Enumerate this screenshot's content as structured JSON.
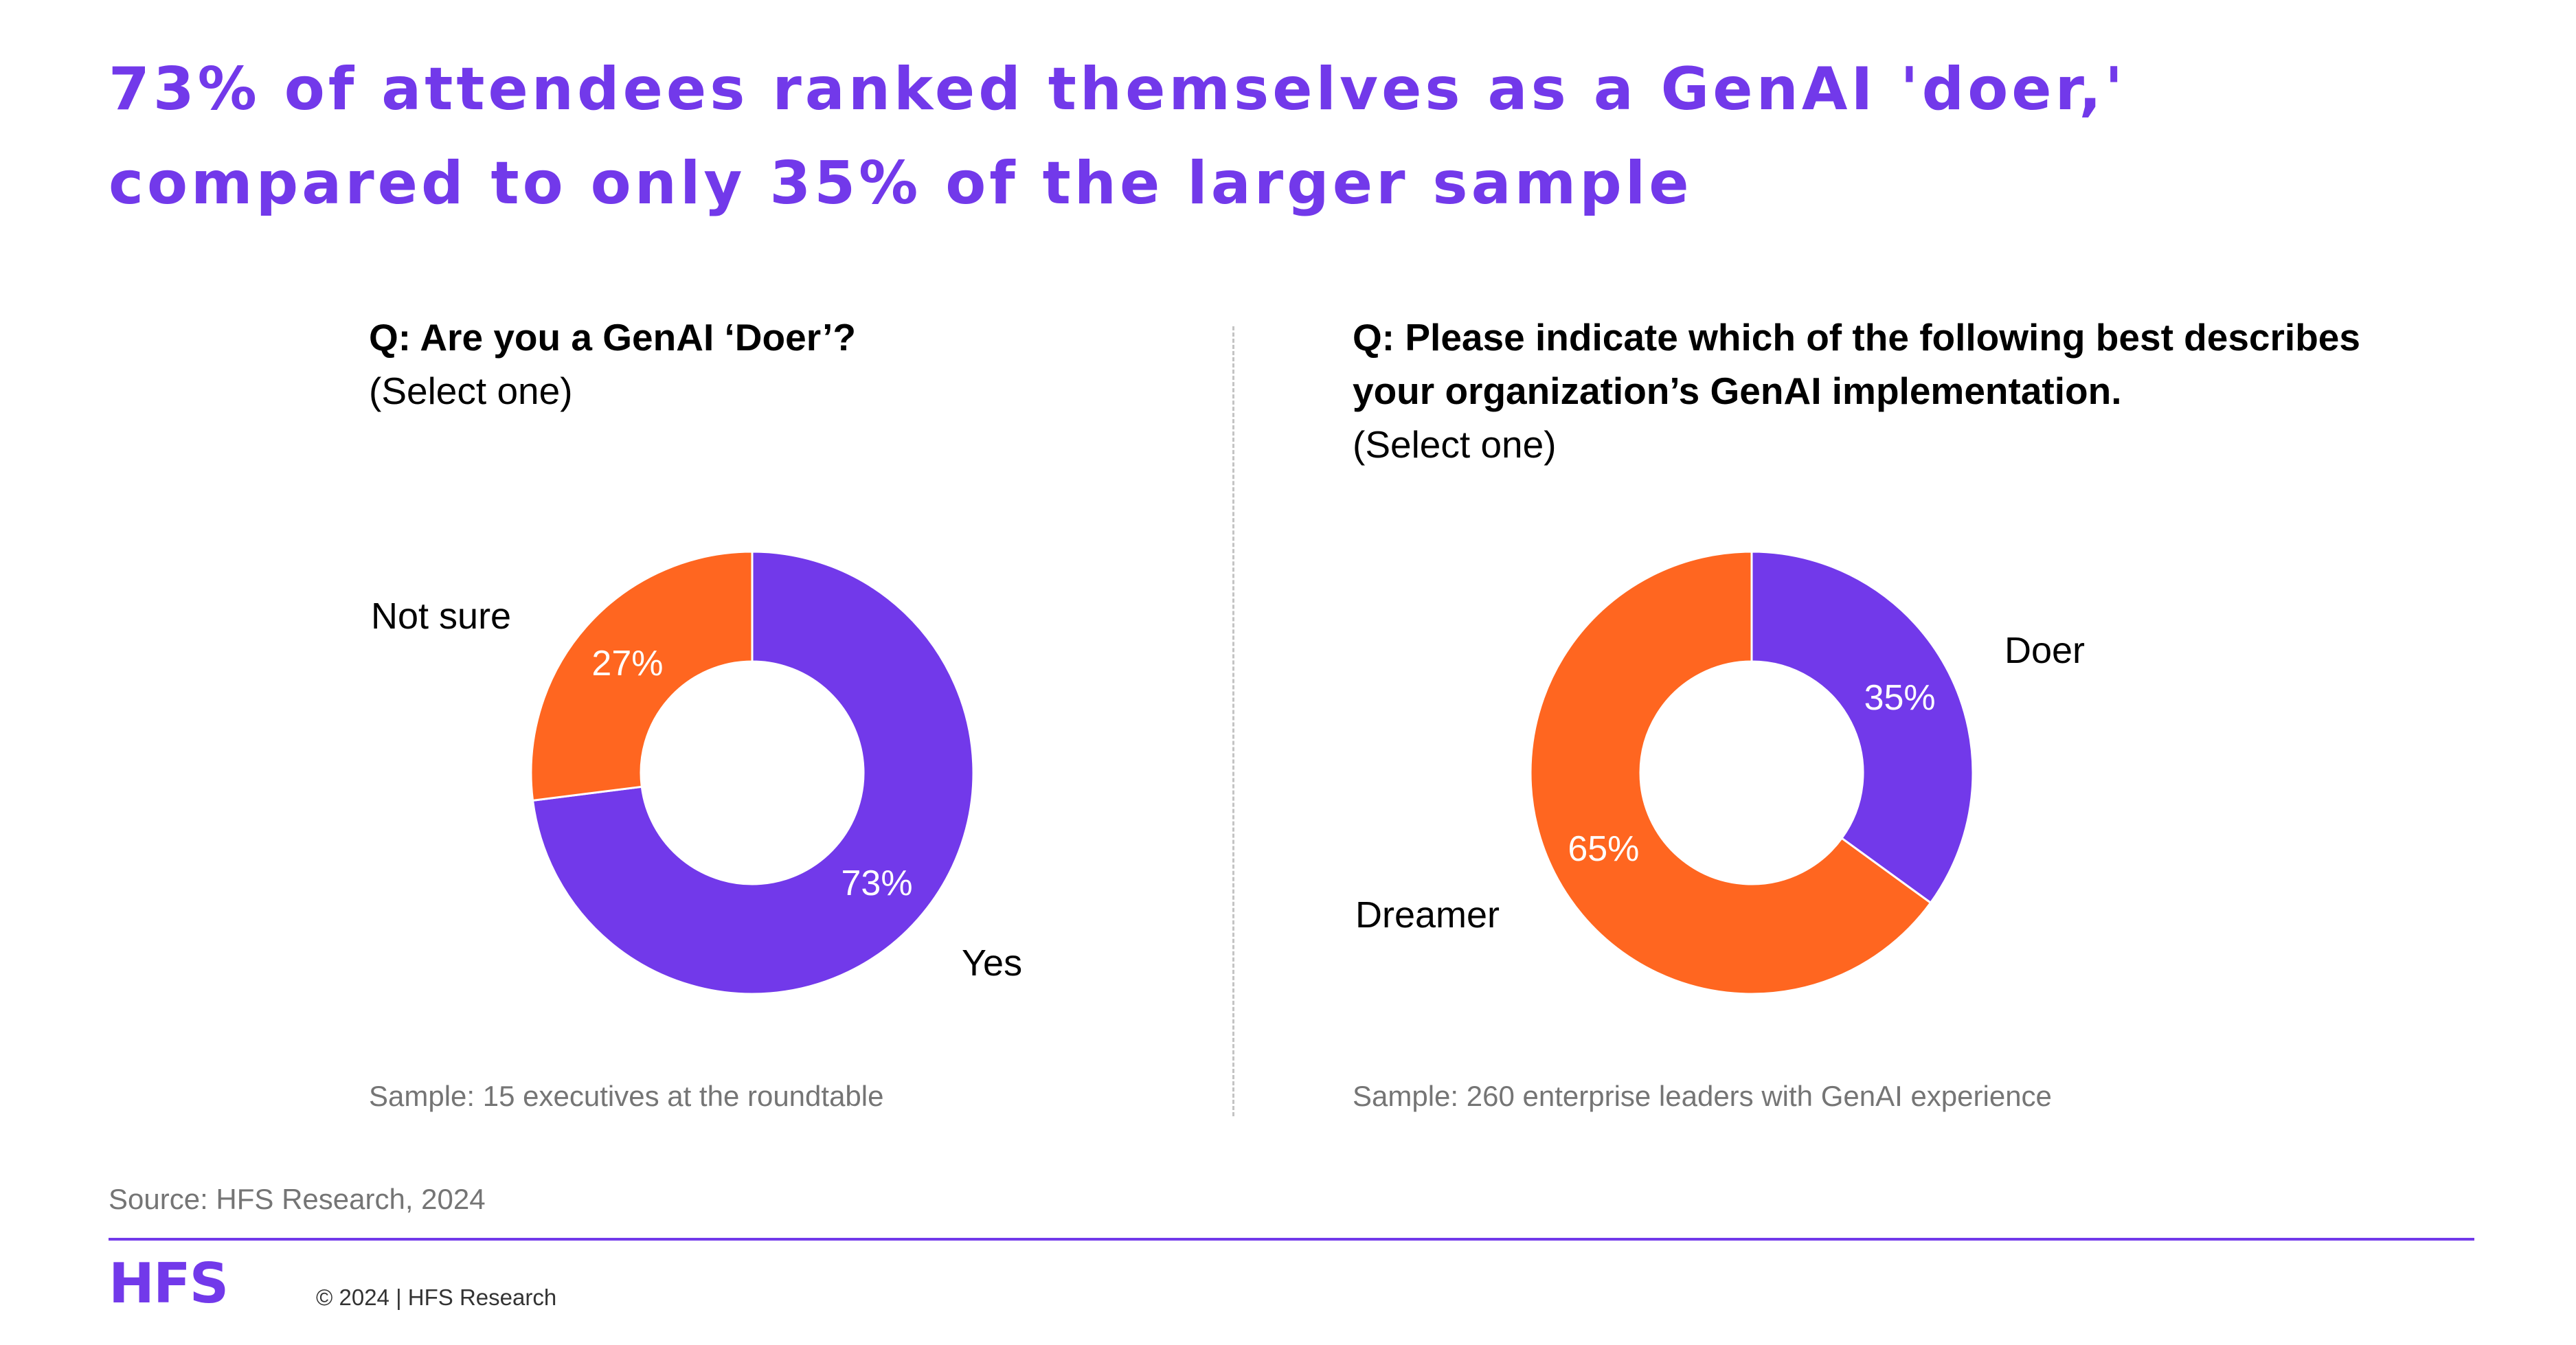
{
  "title": "73% of attendees ranked themselves as a GenAI 'doer,' compared to only 35% of the larger sample",
  "left_panel": {
    "question": "Q: Are you a GenAI ‘Doer’?",
    "instruction": "(Select one)",
    "sample": "Sample: 15 executives at the roundtable"
  },
  "right_panel": {
    "question": "Q: Please indicate which of the following best describes your organization’s GenAI implementation.",
    "instruction": "(Select one)",
    "sample": "Sample: 260 enterprise leaders with GenAI experience"
  },
  "colors": {
    "purple": "#7239ea",
    "orange": "#ff6620",
    "title": "#7239ea",
    "muted": "#757575"
  },
  "chart_data": [
    {
      "type": "pie",
      "donut": true,
      "slices": [
        {
          "label": "Yes",
          "value": 73,
          "display": "73%",
          "color": "#7239ea"
        },
        {
          "label": "Not sure",
          "value": 27,
          "display": "27%",
          "color": "#ff6620"
        }
      ]
    },
    {
      "type": "pie",
      "donut": true,
      "slices": [
        {
          "label": "Doer",
          "value": 35,
          "display": "35%",
          "color": "#7239ea"
        },
        {
          "label": "Dreamer",
          "value": 65,
          "display": "65%",
          "color": "#ff6620"
        }
      ]
    }
  ],
  "footer": {
    "source": "Source: HFS Research, 2024",
    "logo": "HFS",
    "copyright": "© 2024 | HFS Research"
  }
}
